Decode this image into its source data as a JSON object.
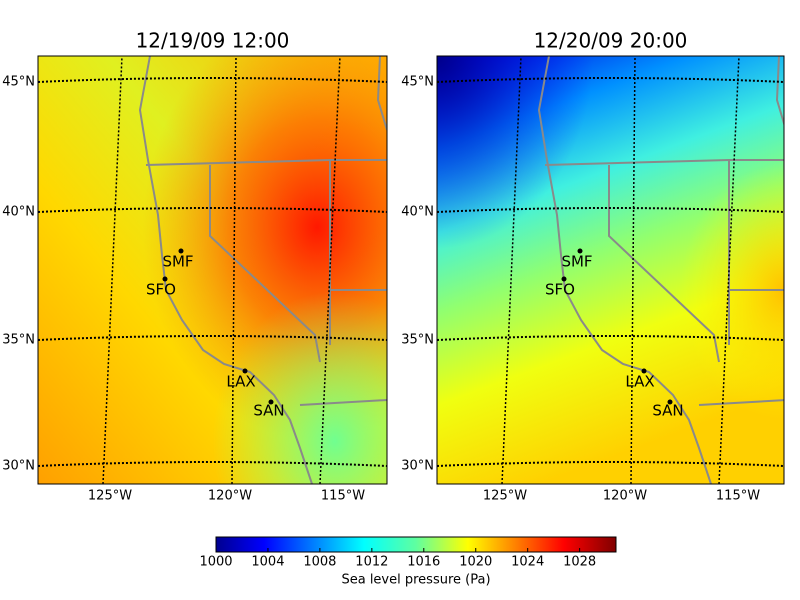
{
  "panels": [
    {
      "title": "12/19/09 12:00",
      "lat_labels": [
        "45°N",
        "40°N",
        "35°N",
        "30°N"
      ],
      "lon_labels": [
        "125°W",
        "120°W",
        "115°W"
      ],
      "cities": [
        "SMF",
        "SFO",
        "LAX",
        "SAN"
      ]
    },
    {
      "title": "12/20/09 20:00",
      "lat_labels": [
        "45°N",
        "40°N",
        "35°N",
        "30°N"
      ],
      "lon_labels": [
        "125°W",
        "120°W",
        "115°W"
      ],
      "cities": [
        "SMF",
        "SFO",
        "LAX",
        "SAN"
      ]
    }
  ],
  "colorbar": {
    "range": [
      1000,
      1030.8
    ],
    "ticks": [
      1000,
      1004,
      1008,
      1012,
      1016,
      1020,
      1024,
      1028
    ],
    "label": "Sea level pressure (Pa)"
  }
}
